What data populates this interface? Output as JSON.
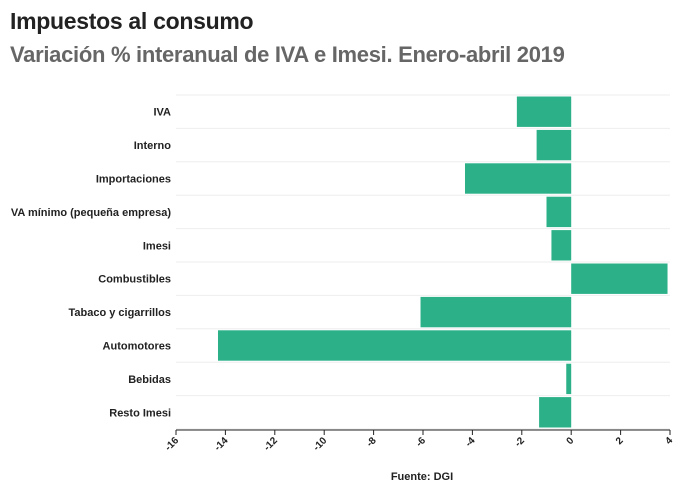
{
  "chart_data": {
    "type": "bar",
    "orientation": "horizontal",
    "title": "Impuestos al consumo",
    "subtitle": "Variación % interanual de IVA e Imesi. Enero-abril 2019",
    "categories": [
      "IVA",
      "Interno",
      "Importaciones",
      "VA mínimo (pequeña empresa)",
      "Imesi",
      "Combustibles",
      "Tabaco y cigarrillos",
      "Automotores",
      "Bebidas",
      "Resto Imesi"
    ],
    "values": [
      -2.2,
      -1.4,
      -4.3,
      -1.0,
      -0.8,
      3.9,
      -6.1,
      -14.3,
      -0.2,
      -1.3
    ],
    "xlim": [
      -16,
      4
    ],
    "xticks": [
      -16,
      -14,
      -12,
      -10,
      -8,
      -6,
      -4,
      -2,
      0,
      2,
      4
    ],
    "xlabel": "",
    "ylabel": "",
    "source": "Fuente: DGI",
    "bar_color": "#2bb088",
    "grid": true
  }
}
